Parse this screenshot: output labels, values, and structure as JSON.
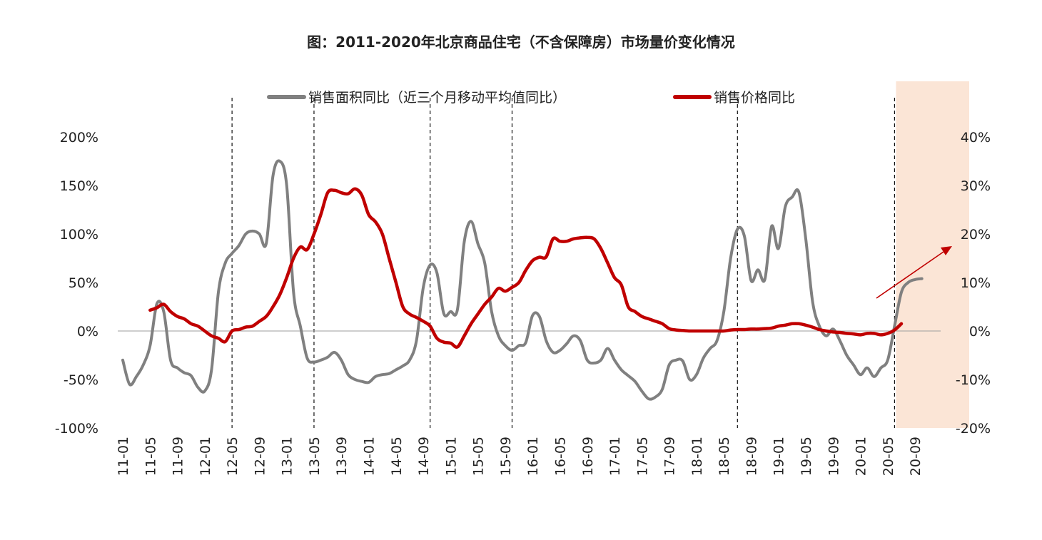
{
  "chart_data": {
    "type": "line",
    "title": "图：2011-2020年北京商品住宅（不含保障房）市场量价变化情况",
    "xlabel": "",
    "ylabel": "",
    "x_tick_labels": [
      "11-01",
      "11-05",
      "11-09",
      "12-01",
      "12-05",
      "12-09",
      "13-01",
      "13-05",
      "13-09",
      "14-01",
      "14-05",
      "14-09",
      "15-01",
      "15-05",
      "15-09",
      "16-01",
      "16-05",
      "16-09",
      "17-01",
      "17-05",
      "17-09",
      "18-01",
      "18-05",
      "18-09",
      "19-01",
      "19-05",
      "19-09",
      "20-01",
      "20-05",
      "20-09"
    ],
    "y_left": {
      "range": [
        -100,
        200
      ],
      "ticks": [
        "200%",
        "150%",
        "100%",
        "50%",
        "0%",
        "-50%",
        "-100%"
      ]
    },
    "y_right": {
      "range": [
        -20,
        40
      ],
      "ticks": [
        "40%",
        "30%",
        "20%",
        "10%",
        "0%",
        "-10%",
        "-20%"
      ]
    },
    "legend_position": "top",
    "series": [
      {
        "name": "销售面积同比（近三个月移动平均值同比）",
        "axis": "left",
        "color": "#808080",
        "points": [
          [
            "2011-01",
            -30
          ],
          [
            "2011-02",
            -55
          ],
          [
            "2011-03",
            -47
          ],
          [
            "2011-04",
            -35
          ],
          [
            "2011-05",
            -15
          ],
          [
            "2011-06",
            28
          ],
          [
            "2011-07",
            20
          ],
          [
            "2011-08",
            -30
          ],
          [
            "2011-09",
            -38
          ],
          [
            "2011-10",
            -43
          ],
          [
            "2011-11",
            -46
          ],
          [
            "2011-12",
            -58
          ],
          [
            "2012-01",
            -62
          ],
          [
            "2012-02",
            -40
          ],
          [
            "2012-03",
            40
          ],
          [
            "2012-04",
            70
          ],
          [
            "2012-05",
            80
          ],
          [
            "2012-06",
            88
          ],
          [
            "2012-07",
            100
          ],
          [
            "2012-08",
            103
          ],
          [
            "2012-09",
            100
          ],
          [
            "2012-10",
            90
          ],
          [
            "2012-11",
            160
          ],
          [
            "2012-12",
            175
          ],
          [
            "2013-01",
            150
          ],
          [
            "2013-02",
            40
          ],
          [
            "2013-03",
            5
          ],
          [
            "2013-04",
            -28
          ],
          [
            "2013-05",
            -32
          ],
          [
            "2013-06",
            -30
          ],
          [
            "2013-07",
            -27
          ],
          [
            "2013-08",
            -22
          ],
          [
            "2013-09",
            -30
          ],
          [
            "2013-10",
            -45
          ],
          [
            "2013-11",
            -50
          ],
          [
            "2013-12",
            -52
          ],
          [
            "2014-01",
            -53
          ],
          [
            "2014-02",
            -47
          ],
          [
            "2014-03",
            -45
          ],
          [
            "2014-04",
            -44
          ],
          [
            "2014-05",
            -40
          ],
          [
            "2014-06",
            -36
          ],
          [
            "2014-07",
            -30
          ],
          [
            "2014-08",
            -10
          ],
          [
            "2014-09",
            45
          ],
          [
            "2014-10",
            68
          ],
          [
            "2014-11",
            60
          ],
          [
            "2014-12",
            18
          ],
          [
            "2015-01",
            20
          ],
          [
            "2015-02",
            22
          ],
          [
            "2015-03",
            92
          ],
          [
            "2015-04",
            113
          ],
          [
            "2015-05",
            90
          ],
          [
            "2015-06",
            70
          ],
          [
            "2015-07",
            20
          ],
          [
            "2015-08",
            -5
          ],
          [
            "2015-09",
            -15
          ],
          [
            "2015-10",
            -20
          ],
          [
            "2015-11",
            -15
          ],
          [
            "2015-12",
            -12
          ],
          [
            "2016-01",
            16
          ],
          [
            "2016-02",
            15
          ],
          [
            "2016-03",
            -10
          ],
          [
            "2016-04",
            -22
          ],
          [
            "2016-05",
            -20
          ],
          [
            "2016-06",
            -13
          ],
          [
            "2016-07",
            -5
          ],
          [
            "2016-08",
            -10
          ],
          [
            "2016-09",
            -30
          ],
          [
            "2016-10",
            -33
          ],
          [
            "2016-11",
            -30
          ],
          [
            "2016-12",
            -18
          ],
          [
            "2017-01",
            -30
          ],
          [
            "2017-02",
            -40
          ],
          [
            "2017-03",
            -46
          ],
          [
            "2017-04",
            -52
          ],
          [
            "2017-05",
            -62
          ],
          [
            "2017-06",
            -70
          ],
          [
            "2017-07",
            -68
          ],
          [
            "2017-08",
            -60
          ],
          [
            "2017-09",
            -35
          ],
          [
            "2017-10",
            -30
          ],
          [
            "2017-11",
            -31
          ],
          [
            "2017-12",
            -50
          ],
          [
            "2018-01",
            -45
          ],
          [
            "2018-02",
            -28
          ],
          [
            "2018-03",
            -18
          ],
          [
            "2018-04",
            -10
          ],
          [
            "2018-05",
            20
          ],
          [
            "2018-06",
            75
          ],
          [
            "2018-07",
            105
          ],
          [
            "2018-08",
            98
          ],
          [
            "2018-09",
            52
          ],
          [
            "2018-10",
            63
          ],
          [
            "2018-11",
            53
          ],
          [
            "2018-12",
            108
          ],
          [
            "2019-01",
            85
          ],
          [
            "2019-02",
            128
          ],
          [
            "2019-03",
            138
          ],
          [
            "2019-04",
            143
          ],
          [
            "2019-05",
            95
          ],
          [
            "2019-06",
            30
          ],
          [
            "2019-07",
            5
          ],
          [
            "2019-08",
            -5
          ],
          [
            "2019-09",
            2
          ],
          [
            "2019-10",
            -10
          ],
          [
            "2019-11",
            -25
          ],
          [
            "2019-12",
            -35
          ],
          [
            "2020-01",
            -45
          ],
          [
            "2020-02",
            -38
          ],
          [
            "2020-03",
            -47
          ],
          [
            "2020-04",
            -38
          ],
          [
            "2020-05",
            -30
          ],
          [
            "2020-06",
            5
          ],
          [
            "2020-07",
            40
          ],
          [
            "2020-08",
            50
          ],
          [
            "2020-09",
            53
          ],
          [
            "2020-10",
            54
          ]
        ]
      },
      {
        "name": "销售价格同比",
        "axis": "right",
        "color": "#c00000",
        "points": [
          [
            "2011-05",
            4.3
          ],
          [
            "2011-06",
            4.8
          ],
          [
            "2011-07",
            5.5
          ],
          [
            "2011-08",
            4.0
          ],
          [
            "2011-09",
            3.0
          ],
          [
            "2011-10",
            2.5
          ],
          [
            "2011-11",
            1.5
          ],
          [
            "2011-12",
            1.0
          ],
          [
            "2012-01",
            0
          ],
          [
            "2012-02",
            -1
          ],
          [
            "2012-03",
            -1.5
          ],
          [
            "2012-04",
            -2.2
          ],
          [
            "2012-05",
            0
          ],
          [
            "2012-06",
            0.3
          ],
          [
            "2012-07",
            0.8
          ],
          [
            "2012-08",
            1
          ],
          [
            "2012-09",
            2
          ],
          [
            "2012-10",
            3
          ],
          [
            "2012-11",
            5
          ],
          [
            "2012-12",
            7.5
          ],
          [
            "2013-01",
            11
          ],
          [
            "2013-02",
            15
          ],
          [
            "2013-03",
            17.3
          ],
          [
            "2013-04",
            16.8
          ],
          [
            "2013-05",
            20
          ],
          [
            "2013-06",
            24
          ],
          [
            "2013-07",
            28.5
          ],
          [
            "2013-08",
            29
          ],
          [
            "2013-09",
            28.5
          ],
          [
            "2013-10",
            28.3
          ],
          [
            "2013-11",
            29.3
          ],
          [
            "2013-12",
            28
          ],
          [
            "2014-01",
            24
          ],
          [
            "2014-02",
            22.5
          ],
          [
            "2014-03",
            20
          ],
          [
            "2014-04",
            15
          ],
          [
            "2014-05",
            10
          ],
          [
            "2014-06",
            5
          ],
          [
            "2014-07",
            3.5
          ],
          [
            "2014-08",
            2.8
          ],
          [
            "2014-09",
            2
          ],
          [
            "2014-10",
            1
          ],
          [
            "2014-11",
            -1.5
          ],
          [
            "2014-12",
            -2.3
          ],
          [
            "2015-01",
            -2.5
          ],
          [
            "2015-02",
            -3.3
          ],
          [
            "2015-03",
            -1
          ],
          [
            "2015-04",
            1.5
          ],
          [
            "2015-05",
            3.5
          ],
          [
            "2015-06",
            5.5
          ],
          [
            "2015-07",
            7
          ],
          [
            "2015-08",
            8.8
          ],
          [
            "2015-09",
            8.2
          ],
          [
            "2015-10",
            9
          ],
          [
            "2015-11",
            10
          ],
          [
            "2015-12",
            12.5
          ],
          [
            "2016-01",
            14.5
          ],
          [
            "2016-02",
            15.2
          ],
          [
            "2016-03",
            15.3
          ],
          [
            "2016-04",
            19
          ],
          [
            "2016-05",
            18.5
          ],
          [
            "2016-06",
            18.5
          ],
          [
            "2016-07",
            19
          ],
          [
            "2016-08",
            19.2
          ],
          [
            "2016-09",
            19.3
          ],
          [
            "2016-10",
            19
          ],
          [
            "2016-11",
            17
          ],
          [
            "2016-12",
            14
          ],
          [
            "2017-01",
            11
          ],
          [
            "2017-02",
            9.5
          ],
          [
            "2017-03",
            5
          ],
          [
            "2017-04",
            4
          ],
          [
            "2017-05",
            3
          ],
          [
            "2017-06",
            2.5
          ],
          [
            "2017-07",
            2
          ],
          [
            "2017-08",
            1.5
          ],
          [
            "2017-09",
            0.5
          ],
          [
            "2017-10",
            0.2
          ],
          [
            "2017-11",
            0.1
          ],
          [
            "2017-12",
            0
          ],
          [
            "2018-01",
            0
          ],
          [
            "2018-02",
            0
          ],
          [
            "2018-03",
            0
          ],
          [
            "2018-04",
            0
          ],
          [
            "2018-05",
            0
          ],
          [
            "2018-06",
            0.2
          ],
          [
            "2018-07",
            0.3
          ],
          [
            "2018-08",
            0.3
          ],
          [
            "2018-09",
            0.4
          ],
          [
            "2018-10",
            0.4
          ],
          [
            "2018-11",
            0.5
          ],
          [
            "2018-12",
            0.6
          ],
          [
            "2019-01",
            1
          ],
          [
            "2019-02",
            1.2
          ],
          [
            "2019-03",
            1.5
          ],
          [
            "2019-04",
            1.5
          ],
          [
            "2019-05",
            1.2
          ],
          [
            "2019-06",
            0.8
          ],
          [
            "2019-07",
            0.3
          ],
          [
            "2019-08",
            0
          ],
          [
            "2019-09",
            -0.2
          ],
          [
            "2019-10",
            -0.3
          ],
          [
            "2019-11",
            -0.5
          ],
          [
            "2019-12",
            -0.6
          ],
          [
            "2020-01",
            -0.8
          ],
          [
            "2020-02",
            -0.5
          ],
          [
            "2020-03",
            -0.5
          ],
          [
            "2020-04",
            -0.8
          ],
          [
            "2020-05",
            -0.5
          ],
          [
            "2020-06",
            0.2
          ],
          [
            "2020-07",
            1.5
          ]
        ]
      }
    ],
    "vertical_dashed_lines_at": [
      "2012-05",
      "2013-05",
      "2014-10",
      "2015-10",
      "2018-07",
      "2020-06"
    ],
    "highlight_band": {
      "start": "2020-06",
      "end": "2020-12",
      "color": "#fbe5d6"
    },
    "annotation_arrow": {
      "color": "#c00000",
      "description": "upward trend arrow"
    },
    "grid": false
  }
}
